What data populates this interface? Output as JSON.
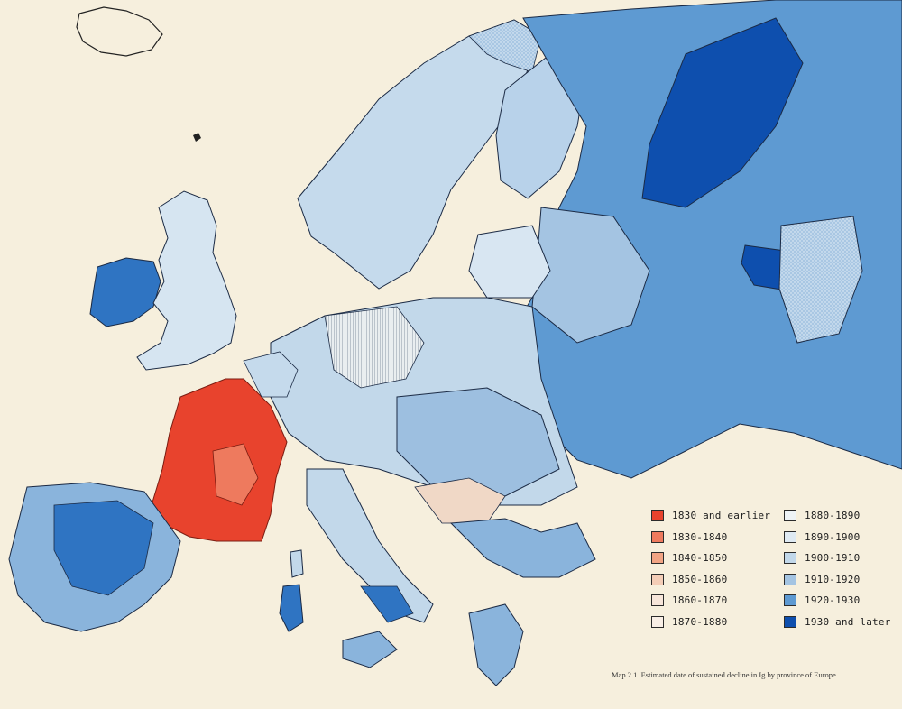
{
  "legend": {
    "left": [
      {
        "label": "1830 and earlier",
        "color": "#e8432d"
      },
      {
        "label": "1830-1840",
        "color": "#ee7a5e"
      },
      {
        "label": "1840-1850",
        "color": "#f2a484"
      },
      {
        "label": "1850-1860",
        "color": "#f4cdb7"
      },
      {
        "label": "1860-1870",
        "color": "#f7e6da"
      },
      {
        "label": "1870-1880",
        "color": "#f9efe6"
      }
    ],
    "right": [
      {
        "label": "1880-1890",
        "color": "#eef3f6"
      },
      {
        "label": "1890-1900",
        "color": "#dfeaf3"
      },
      {
        "label": "1900-1910",
        "color": "#c2d8ea"
      },
      {
        "label": "1910-1920",
        "color": "#a4c4e2"
      },
      {
        "label": "1920-1930",
        "color": "#5e9ad2"
      },
      {
        "label": "1930 and later",
        "color": "#0e4fae"
      }
    ]
  },
  "caption": "Map 2.1.   Estimated date of sustained decline in Ig by province of Europe.",
  "colors": {
    "background": "#f6efdd",
    "border": "#2f3d55"
  }
}
